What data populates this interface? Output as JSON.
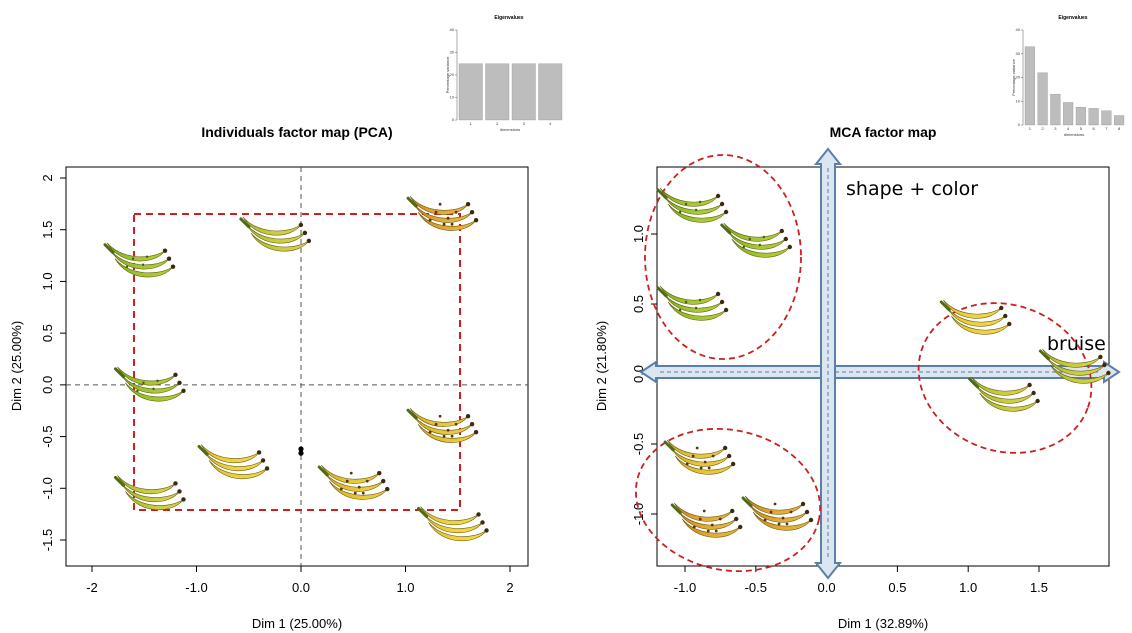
{
  "chart_data": [
    {
      "type": "scatter",
      "title": "Individuals factor map (PCA)",
      "xlabel": "Dim 1 (25.00%)",
      "ylabel": "Dim 2 (25.00%)",
      "xlim": [
        -2.2,
        2.2
      ],
      "ylim": [
        -1.7,
        2.1
      ],
      "xticks": [
        -2,
        -1,
        0,
        1,
        2
      ],
      "yticks": [
        -1.5,
        -1.0,
        -0.5,
        0.0,
        0.5,
        1.0,
        1.5,
        2.0
      ],
      "points": [
        {
          "x": -1.55,
          "y": 1.2,
          "shade": "green"
        },
        {
          "x": -0.25,
          "y": 1.45,
          "shade": "green-yellow"
        },
        {
          "x": 1.35,
          "y": 1.65,
          "shade": "ripe-spotted"
        },
        {
          "x": -1.45,
          "y": 0.0,
          "shade": "green"
        },
        {
          "x": 1.35,
          "y": -0.4,
          "shade": "yellow-spotted"
        },
        {
          "x": -0.65,
          "y": -0.75,
          "shade": "yellow"
        },
        {
          "x": 0.5,
          "y": -0.95,
          "shade": "yellow-spotted"
        },
        {
          "x": -1.45,
          "y": -1.05,
          "shade": "green-yellow"
        },
        {
          "x": 1.45,
          "y": -1.35,
          "shade": "yellow"
        }
      ],
      "dots": [
        {
          "x": 0.0,
          "y": -0.62
        },
        {
          "x": 0.0,
          "y": -0.66
        }
      ],
      "grid": false,
      "inset": {
        "type": "bar",
        "title": "Eigenvalues",
        "ylabel": "Percentage variance",
        "xlabel": "dimensions",
        "categories": [
          "1",
          "2",
          "3",
          "4"
        ],
        "values": [
          25,
          25,
          25,
          25
        ],
        "ylim": [
          0,
          40
        ],
        "yticks": [
          "0",
          "10",
          "20",
          "30",
          "40"
        ]
      }
    },
    {
      "type": "scatter",
      "title": "MCA factor map",
      "xlabel": "Dim 1 (32.89%)",
      "ylabel": "Dim 2 (21.80%)",
      "xlim": [
        -1.2,
        2.0
      ],
      "ylim": [
        -1.35,
        1.45
      ],
      "xticks": [
        -1.0,
        -0.5,
        0.0,
        0.5,
        1.0,
        1.5
      ],
      "yticks": [
        -1.0,
        -0.5,
        0.0,
        0.5,
        1.0
      ],
      "points": [
        {
          "x": -0.95,
          "y": 1.2,
          "shade": "green"
        },
        {
          "x": -0.5,
          "y": 0.95,
          "shade": "green"
        },
        {
          "x": -0.95,
          "y": 0.5,
          "shade": "green"
        },
        {
          "x": 1.05,
          "y": 0.4,
          "shade": "yellow"
        },
        {
          "x": 1.75,
          "y": 0.05,
          "shade": "green-yellow"
        },
        {
          "x": 1.25,
          "y": -0.15,
          "shade": "green-yellow"
        },
        {
          "x": -0.9,
          "y": -0.6,
          "shade": "yellow-spotted"
        },
        {
          "x": -0.85,
          "y": -1.05,
          "shade": "ripe-spotted"
        },
        {
          "x": -0.35,
          "y": -1.0,
          "shade": "ripe-spotted"
        }
      ],
      "annotations": [
        "shape + color",
        "bruise"
      ],
      "grid": false,
      "inset": {
        "type": "bar",
        "title": "Eigenvalues",
        "ylabel": "Percentage variance",
        "xlabel": "dimensions",
        "categories": [
          "1",
          "2",
          "3",
          "4",
          "5",
          "6",
          "7",
          "8"
        ],
        "values": [
          33,
          22,
          13,
          9.5,
          7.5,
          7,
          6,
          4
        ],
        "ylim": [
          0,
          40
        ],
        "yticks": [
          "0",
          "10",
          "20",
          "30",
          "40"
        ]
      }
    }
  ],
  "colors": {
    "dashed_box": "#cc1f1f",
    "arrow_fill": "#dbe6f1",
    "arrow_stroke": "#5b7fa8",
    "axis_dashed": "#555555",
    "inset_bar": "#bdbdbd"
  }
}
